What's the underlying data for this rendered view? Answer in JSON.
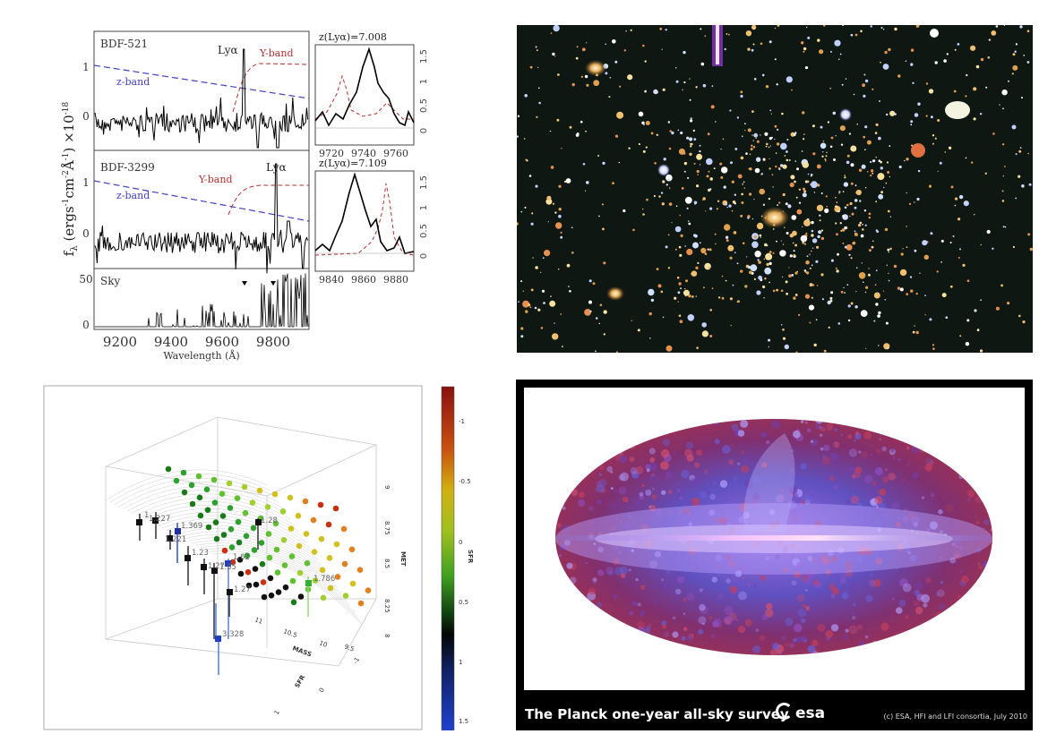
{
  "spectra": {
    "panel1": {
      "name": "BDF-521",
      "line": "Lyα",
      "band_y": "Y-band",
      "band_z": "z-band",
      "redshift": "z(Lyα)=7.008",
      "y_ticks": [
        "0",
        "1"
      ],
      "y_ticks_zoom": [
        "0",
        "0.5",
        "1",
        "1.5"
      ],
      "x_ticks_zoom": [
        "9720",
        "9740",
        "9760"
      ]
    },
    "panel2": {
      "name": "BDF-3299",
      "line": "Lyα",
      "band_y": "Y-band",
      "band_z": "z-band",
      "redshift": "z(Lyα)=7.109",
      "y_ticks": [
        "0",
        "1"
      ],
      "y_ticks_zoom": [
        "0",
        "0.5",
        "1",
        "1.5"
      ],
      "x_ticks_zoom": [
        "9840",
        "9860",
        "9880"
      ]
    },
    "sky": {
      "name": "Sky",
      "y_ticks": [
        "0",
        "50"
      ]
    },
    "x_ticks": [
      "9200",
      "9400",
      "9600",
      "9800"
    ],
    "xlabel": "Wavelength (Å)",
    "ylabel": "f",
    "ylabel_sub": "λ",
    "ylabel_rest": " (ergs",
    "ylabel_units": "-1",
    "ylabel_cm": "cm",
    "ylabel_m2": "-2",
    "ylabel_A": "Å",
    "ylabel_m1": "-1",
    "ylabel_close": ") ×10",
    "ylabel_exp": "-18"
  },
  "plot3d": {
    "point_labels": [
      "1.227",
      "1.369",
      "1.221",
      "1.23",
      "1.27",
      "1.62",
      "1.35",
      "1.27",
      "1.786",
      "1.28",
      "3.328",
      "1"
    ],
    "axis_mass": "MASS",
    "axis_met": "MET",
    "axis_sfr": "SFR",
    "met_ticks": [
      "8",
      "8.25",
      "8.5",
      "8.75",
      "9"
    ],
    "mass_ticks": [
      "11",
      "10.5",
      "10",
      "9.5"
    ],
    "sfr_ticks": [
      "-1",
      "0",
      "1"
    ],
    "colorbar_label": "SFR",
    "colorbar_ticks": [
      "-1",
      "-0.5",
      "0",
      "0.5",
      "1",
      "1.5"
    ]
  },
  "planck": {
    "caption": "The Planck one-year all-sky survey",
    "logo": "esa",
    "credit": "(c) ESA, HFI and LFI consortia, July 2010"
  },
  "colors": {
    "spectrum": "#000000",
    "yband": "#b03030",
    "zband": "#4040c0",
    "sky_bg": "#0f1712",
    "planck_bg": "#000000"
  }
}
